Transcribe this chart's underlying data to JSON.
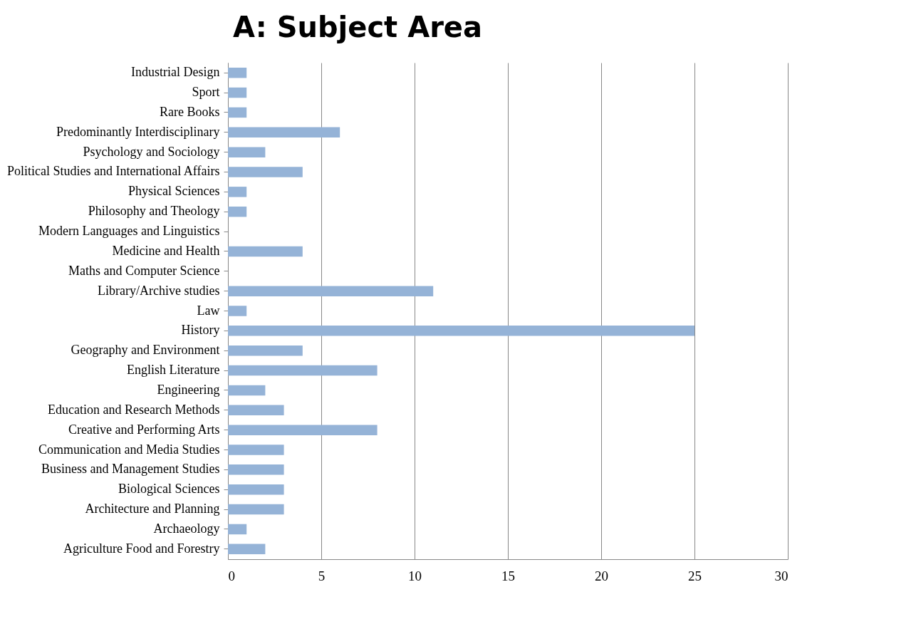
{
  "chart_data": {
    "type": "bar",
    "orientation": "horizontal",
    "title": "A: Subject Area",
    "categories": [
      "Industrial Design",
      "Sport",
      "Rare Books",
      "Predominantly Interdisciplinary",
      "Psychology and Sociology",
      "Political Studies and International Affairs",
      "Physical Sciences",
      "Philosophy and Theology",
      "Modern Languages and Linguistics",
      "Medicine and Health",
      "Maths and Computer Science",
      "Library/Archive studies",
      "Law",
      "History",
      "Geography and Environment",
      "English Literature",
      "Engineering",
      "Education and Research Methods",
      "Creative and Performing Arts",
      "Communication and Media Studies",
      "Business and Management Studies",
      "Biological Sciences",
      "Architecture and Planning",
      "Archaeology",
      "Agriculture Food and Forestry"
    ],
    "values": [
      1,
      1,
      1,
      6,
      2,
      4,
      1,
      1,
      0,
      4,
      0,
      11,
      1,
      25,
      4,
      8,
      2,
      3,
      8,
      3,
      3,
      3,
      3,
      1,
      2
    ],
    "color": "#95b3d7",
    "xlim": [
      0,
      30
    ],
    "xticks": [
      0,
      5,
      10,
      15,
      20,
      25,
      30
    ],
    "grid": "x"
  }
}
